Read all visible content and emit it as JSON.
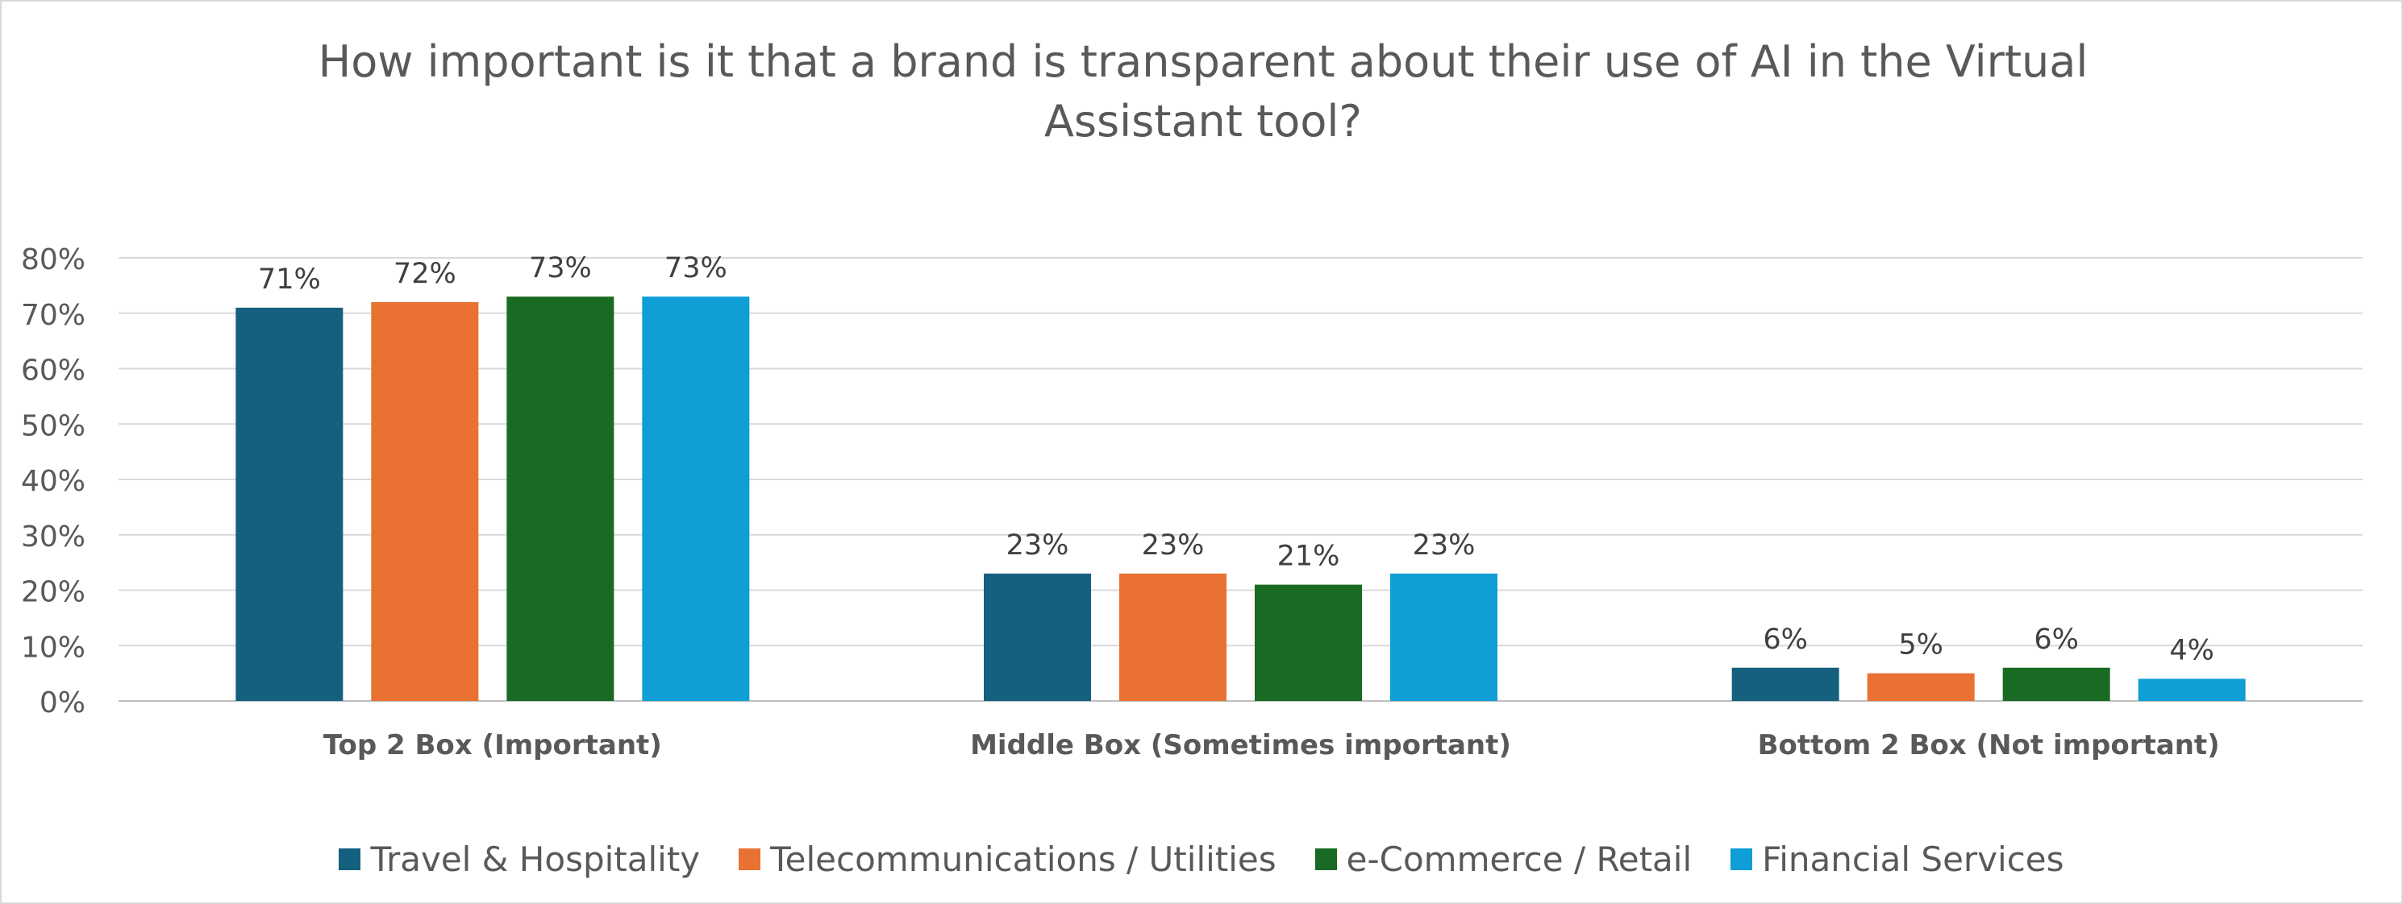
{
  "chart_data": {
    "type": "bar",
    "title": "How important is it that a brand is transparent about their use of AI in the Virtual Assistant tool?",
    "categories": [
      "Top 2 Box (Important)",
      "Middle Box (Sometimes important)",
      "Bottom 2 Box (Not important)"
    ],
    "series": [
      {
        "name": "Travel & Hospitality",
        "color": "#15607f",
        "values": [
          71,
          23,
          6
        ],
        "labels": [
          "71%",
          "23%",
          "6%"
        ]
      },
      {
        "name": "Telecommunications / Utilities",
        "color": "#e97132",
        "values": [
          72,
          23,
          5
        ],
        "labels": [
          "72%",
          "23%",
          "5%"
        ]
      },
      {
        "name": "e-Commerce / Retail",
        "color": "#196b24",
        "values": [
          73,
          21,
          6
        ],
        "labels": [
          "73%",
          "21%",
          "6%"
        ]
      },
      {
        "name": "Financial Services",
        "color": "#0f9ed5",
        "values": [
          73,
          23,
          4
        ],
        "labels": [
          "73%",
          "23%",
          "4%"
        ]
      }
    ],
    "ylim": [
      0,
      80
    ],
    "yticks": [
      "0%",
      "10%",
      "20%",
      "30%",
      "40%",
      "50%",
      "60%",
      "70%",
      "80%"
    ],
    "grid": true,
    "legend_position": "bottom"
  }
}
